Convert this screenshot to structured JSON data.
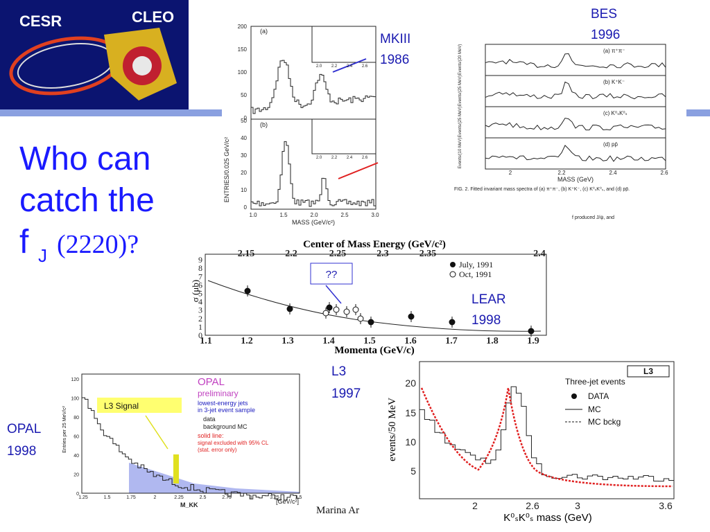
{
  "logo": {
    "left": "CESR",
    "right": "CLEO"
  },
  "title": {
    "line1": "Who can",
    "line2": "catch the",
    "symbol": "f",
    "subscript": "J",
    "mass": "(2220)?"
  },
  "mkiii": {
    "label": "MKIII",
    "year": "1986",
    "panel_a": "(a)",
    "panel_b": "(b)",
    "y_label": "ENTRIES/0.025 GeV/c²",
    "x_label": "MASS (GeV/c²)",
    "yticks_a": [
      "200",
      "150",
      "100",
      "50",
      "0"
    ],
    "yticks_b": [
      "50",
      "40",
      "30",
      "20",
      "10",
      "0"
    ],
    "xticks": [
      "1.0",
      "1.5",
      "2.0",
      "2.5",
      "3.0"
    ],
    "inset_xticks": [
      "2.0",
      "2.2",
      "2.4",
      "2.6"
    ]
  },
  "bes": {
    "label": "BES",
    "year": "1996",
    "panels": [
      "(a)  π⁺π⁻",
      "(b)  K⁺K⁻",
      "(c)  K⁰ₛK⁰ₛ",
      "(d)  pp̄"
    ],
    "y_labels": [
      "Events/(20 MeV)",
      "Events/(25 MeV)",
      "Events/(25 MeV)",
      "Events/(10 MeV)"
    ],
    "xticks": [
      "2",
      "2.2",
      "2.4",
      "2.6"
    ],
    "x_label": "MASS    (GeV)",
    "caption": "FIG. 2.  Fitted invariant mass spectra of (a) π⁺π⁻, (b) K⁺K⁻, (c) K⁰ₛK⁰ₛ, and (d) pp̄.",
    "fragment": "f produced J/ψ, and"
  },
  "lear": {
    "label": "LEAR",
    "year": "1998",
    "query": "??",
    "top_title": "Center of Mass Energy (GeV/c²)",
    "top_ticks": [
      "2.15",
      "2.2",
      "2.25",
      "2.3",
      "2.35",
      "2.4"
    ],
    "x_label": "Momenta (GeV/c)",
    "xticks": [
      "1.1",
      "1.2",
      "1.3",
      "1.4",
      "1.5",
      "1.6",
      "1.7",
      "1.8",
      "1.9"
    ],
    "y_label": "σ (μb)",
    "yticks": [
      "0",
      "1",
      "2",
      "3",
      "4",
      "5",
      "6",
      "7",
      "8",
      "9"
    ],
    "legend": [
      "July, 1991",
      "Oct, 1991"
    ]
  },
  "l3": {
    "label": "L3",
    "year": "1997",
    "badge": "L3",
    "heading": "Three-jet events",
    "legend": [
      "DATA",
      "MC",
      "MC bckg"
    ],
    "y_label": "events/50 MeV",
    "yticks": [
      "5",
      "10",
      "15",
      "20"
    ],
    "xticks": [
      "2",
      "2.6",
      "3",
      "3.6"
    ],
    "x_label": "K⁰ₛK⁰ₛ mass (GeV)"
  },
  "opal": {
    "label": "OPAL",
    "year": "1998",
    "name": "OPAL",
    "status": "preliminary",
    "sample": [
      "lowest-energy jets",
      "in 3-jet event sample"
    ],
    "legend": [
      "data",
      "background MC"
    ],
    "fit": [
      "solid line:",
      "signal excluded with 95% CL",
      "(stat. error only)"
    ],
    "signal": "L3 Signal",
    "y_label": "Entries per 25 MeV/c²",
    "yticks": [
      "0",
      "20",
      "40",
      "60",
      "80",
      "100",
      "120"
    ],
    "xticks": [
      "1.25",
      "1.5",
      "1.75",
      "2",
      "2.25",
      "2.5",
      "2.75",
      "3",
      "3.25",
      "3.5"
    ],
    "x_label": "M_KK",
    "x_unit": "[GeV/c²]"
  },
  "footer": "Marina Ar"
}
